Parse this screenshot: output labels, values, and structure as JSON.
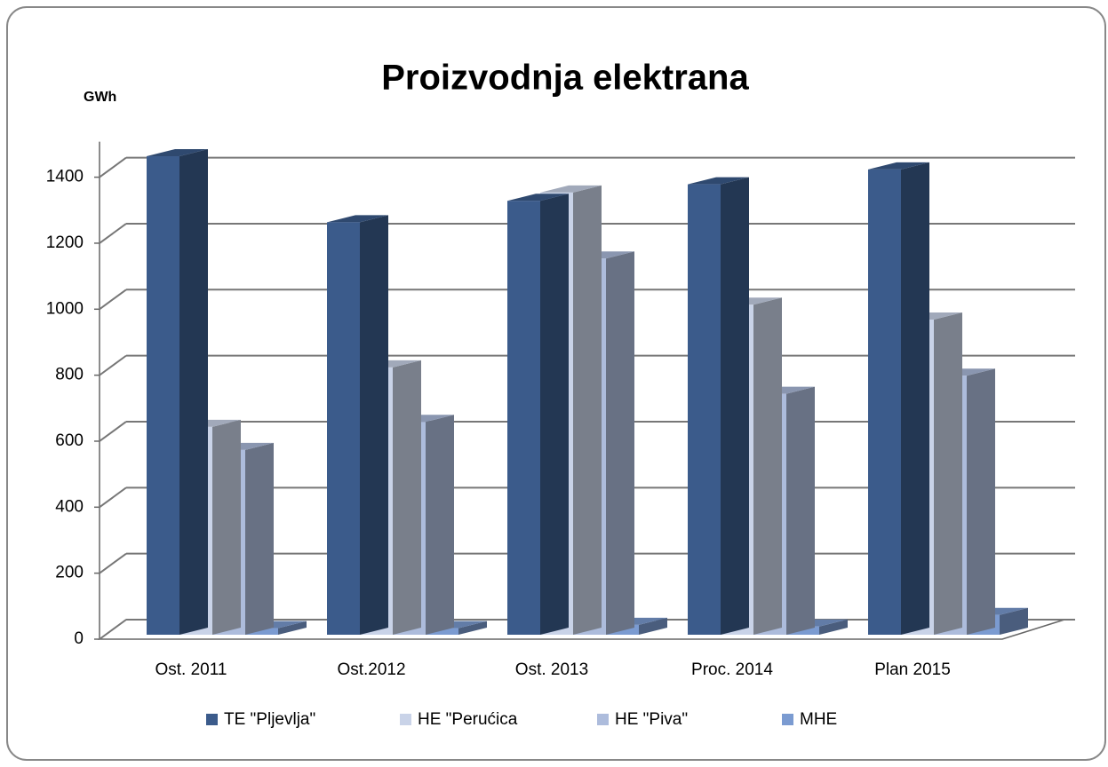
{
  "chart_data": {
    "type": "bar3d",
    "title": "Proizvodnja elektrana",
    "y_label": "GWh",
    "categories": [
      "Ost. 2011",
      "Ost.2012",
      "Ost. 2013",
      "Proc. 2014",
      "Plan 2015"
    ],
    "series": [
      {
        "name": "TE \"Pljevlja\"",
        "color": "#3b5b8b",
        "values": [
          1450,
          1250,
          1315,
          1365,
          1410
        ]
      },
      {
        "name": "HE \"Perućica",
        "color": "#c9d3e8",
        "values": [
          630,
          810,
          1340,
          1000,
          955
        ]
      },
      {
        "name": "HE \"Piva\"",
        "color": "#adbcdc",
        "values": [
          560,
          645,
          1140,
          730,
          785
        ]
      },
      {
        "name": "MHE",
        "color": "#7b9bd1",
        "values": [
          20,
          20,
          30,
          25,
          60
        ]
      }
    ],
    "ylim": [
      0,
      1400
    ],
    "yticks": [
      0,
      200,
      400,
      600,
      800,
      1000,
      1200,
      1400
    ],
    "grid": true,
    "legend": "bottom"
  }
}
